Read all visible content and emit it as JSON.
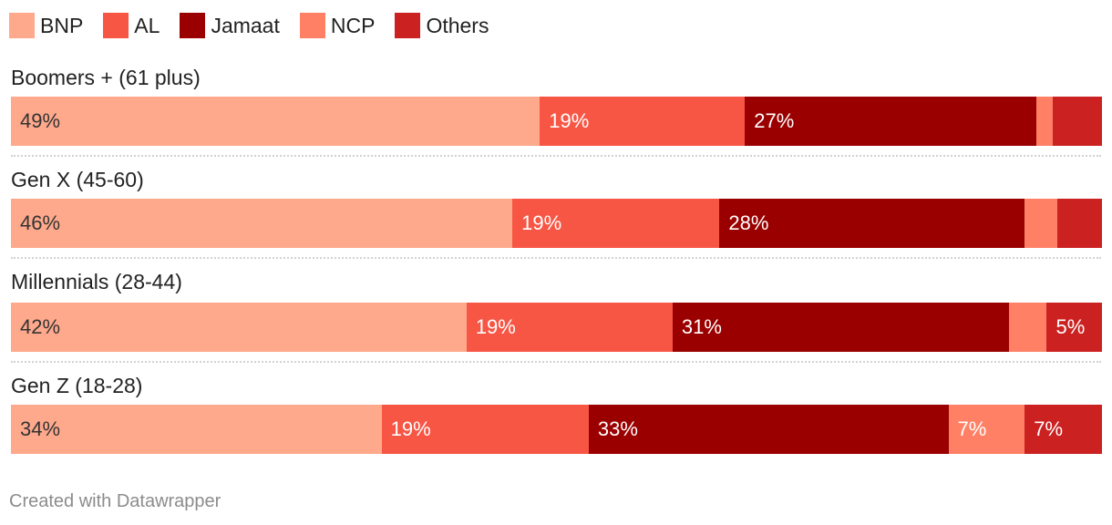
{
  "chart_data": {
    "type": "bar",
    "orientation": "horizontal-stacked-100",
    "series": [
      {
        "name": "BNP",
        "color": "#ffa98c"
      },
      {
        "name": "AL",
        "color": "#f75645"
      },
      {
        "name": "Jamaat",
        "color": "#9b0000"
      },
      {
        "name": "NCP",
        "color": "#ff8065"
      },
      {
        "name": "Others",
        "color": "#cb2121"
      }
    ],
    "rows": [
      {
        "label": "Boomers + (61 plus)",
        "values": [
          49,
          19,
          27,
          1.5,
          4.5
        ],
        "labels": [
          "49%",
          "19%",
          "27%",
          "",
          ""
        ]
      },
      {
        "label": "Gen X (45-60)",
        "values": [
          46,
          19,
          28,
          3,
          4
        ],
        "labels": [
          "46%",
          "19%",
          "28%",
          "",
          ""
        ]
      },
      {
        "label": "Millennials (28-44)",
        "values": [
          42,
          19,
          31,
          3.5,
          5
        ],
        "labels": [
          "42%",
          "19%",
          "31%",
          "",
          "5%"
        ]
      },
      {
        "label": "Gen Z (18-28)",
        "values": [
          34,
          19,
          33,
          7,
          7
        ],
        "labels": [
          "34%",
          "19%",
          "33%",
          "7%",
          "7%"
        ]
      }
    ]
  },
  "footer": {
    "credit": "Created with Datawrapper"
  }
}
